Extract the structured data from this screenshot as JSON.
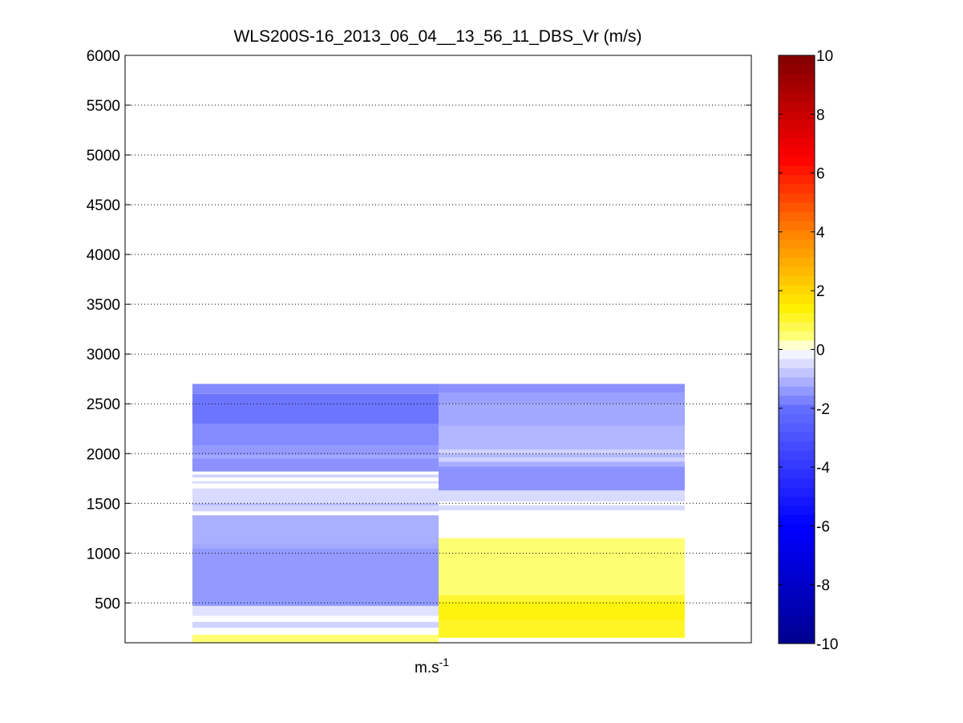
{
  "chart_data": {
    "type": "heatmap",
    "title": "WLS200S-16_2013_06_04__13_56_11_DBS_Vr (m/s)",
    "xlabel": "m.s",
    "xlabel_superscript": "-1",
    "ylabel": "",
    "ylim": [
      100,
      6000
    ],
    "yticks": [
      500,
      1000,
      1500,
      2000,
      2500,
      3000,
      3500,
      4000,
      4500,
      5000,
      5500,
      6000
    ],
    "grid": true,
    "columns": [
      {
        "bins": [
          {
            "from": 100,
            "to": 180,
            "value": 0.5
          },
          {
            "from": 180,
            "to": 250,
            "value": null
          },
          {
            "from": 250,
            "to": 310,
            "value": -0.6
          },
          {
            "from": 310,
            "to": 370,
            "value": null
          },
          {
            "from": 370,
            "to": 470,
            "value": -0.4
          },
          {
            "from": 470,
            "to": 1050,
            "value": -1.4
          },
          {
            "from": 1050,
            "to": 1100,
            "value": -1.2
          },
          {
            "from": 1100,
            "to": 1380,
            "value": -1.1
          },
          {
            "from": 1380,
            "to": 1420,
            "value": null
          },
          {
            "from": 1420,
            "to": 1480,
            "value": -0.6
          },
          {
            "from": 1480,
            "to": 1500,
            "value": -1.0
          },
          {
            "from": 1500,
            "to": 1650,
            "value": -0.5
          },
          {
            "from": 1650,
            "to": 1700,
            "value": null
          },
          {
            "from": 1700,
            "to": 1720,
            "value": -0.5
          },
          {
            "from": 1720,
            "to": 1760,
            "value": null
          },
          {
            "from": 1760,
            "to": 1790,
            "value": -0.6
          },
          {
            "from": 1790,
            "to": 1820,
            "value": null
          },
          {
            "from": 1820,
            "to": 1950,
            "value": -1.5
          },
          {
            "from": 1950,
            "to": 1980,
            "value": -1.2
          },
          {
            "from": 1980,
            "to": 2080,
            "value": -1.4
          },
          {
            "from": 2080,
            "to": 2300,
            "value": -1.6
          },
          {
            "from": 2300,
            "to": 2600,
            "value": -1.9
          },
          {
            "from": 2600,
            "to": 2700,
            "value": -1.6
          }
        ]
      },
      {
        "bins": [
          {
            "from": 100,
            "to": 150,
            "value": null
          },
          {
            "from": 150,
            "to": 320,
            "value": 1.1
          },
          {
            "from": 320,
            "to": 520,
            "value": 1.3
          },
          {
            "from": 520,
            "to": 580,
            "value": 1.0
          },
          {
            "from": 580,
            "to": 1150,
            "value": 0.5
          },
          {
            "from": 1150,
            "to": 1430,
            "value": null
          },
          {
            "from": 1430,
            "to": 1480,
            "value": -0.5
          },
          {
            "from": 1480,
            "to": 1520,
            "value": null
          },
          {
            "from": 1520,
            "to": 1630,
            "value": -0.5
          },
          {
            "from": 1630,
            "to": 1870,
            "value": -1.5
          },
          {
            "from": 1870,
            "to": 1920,
            "value": -1.1
          },
          {
            "from": 1920,
            "to": 1960,
            "value": -0.6
          },
          {
            "from": 1960,
            "to": 2000,
            "value": -1.0
          },
          {
            "from": 2000,
            "to": 2040,
            "value": -0.6
          },
          {
            "from": 2040,
            "to": 2280,
            "value": -1.0
          },
          {
            "from": 2280,
            "to": 2500,
            "value": -1.2
          },
          {
            "from": 2500,
            "to": 2610,
            "value": -1.3
          },
          {
            "from": 2610,
            "to": 2700,
            "value": -1.5
          }
        ]
      }
    ],
    "colorbar": {
      "range": [
        -10,
        10
      ],
      "ticks": [
        -10,
        -8,
        -6,
        -4,
        -2,
        0,
        2,
        4,
        6,
        8,
        10
      ]
    }
  }
}
